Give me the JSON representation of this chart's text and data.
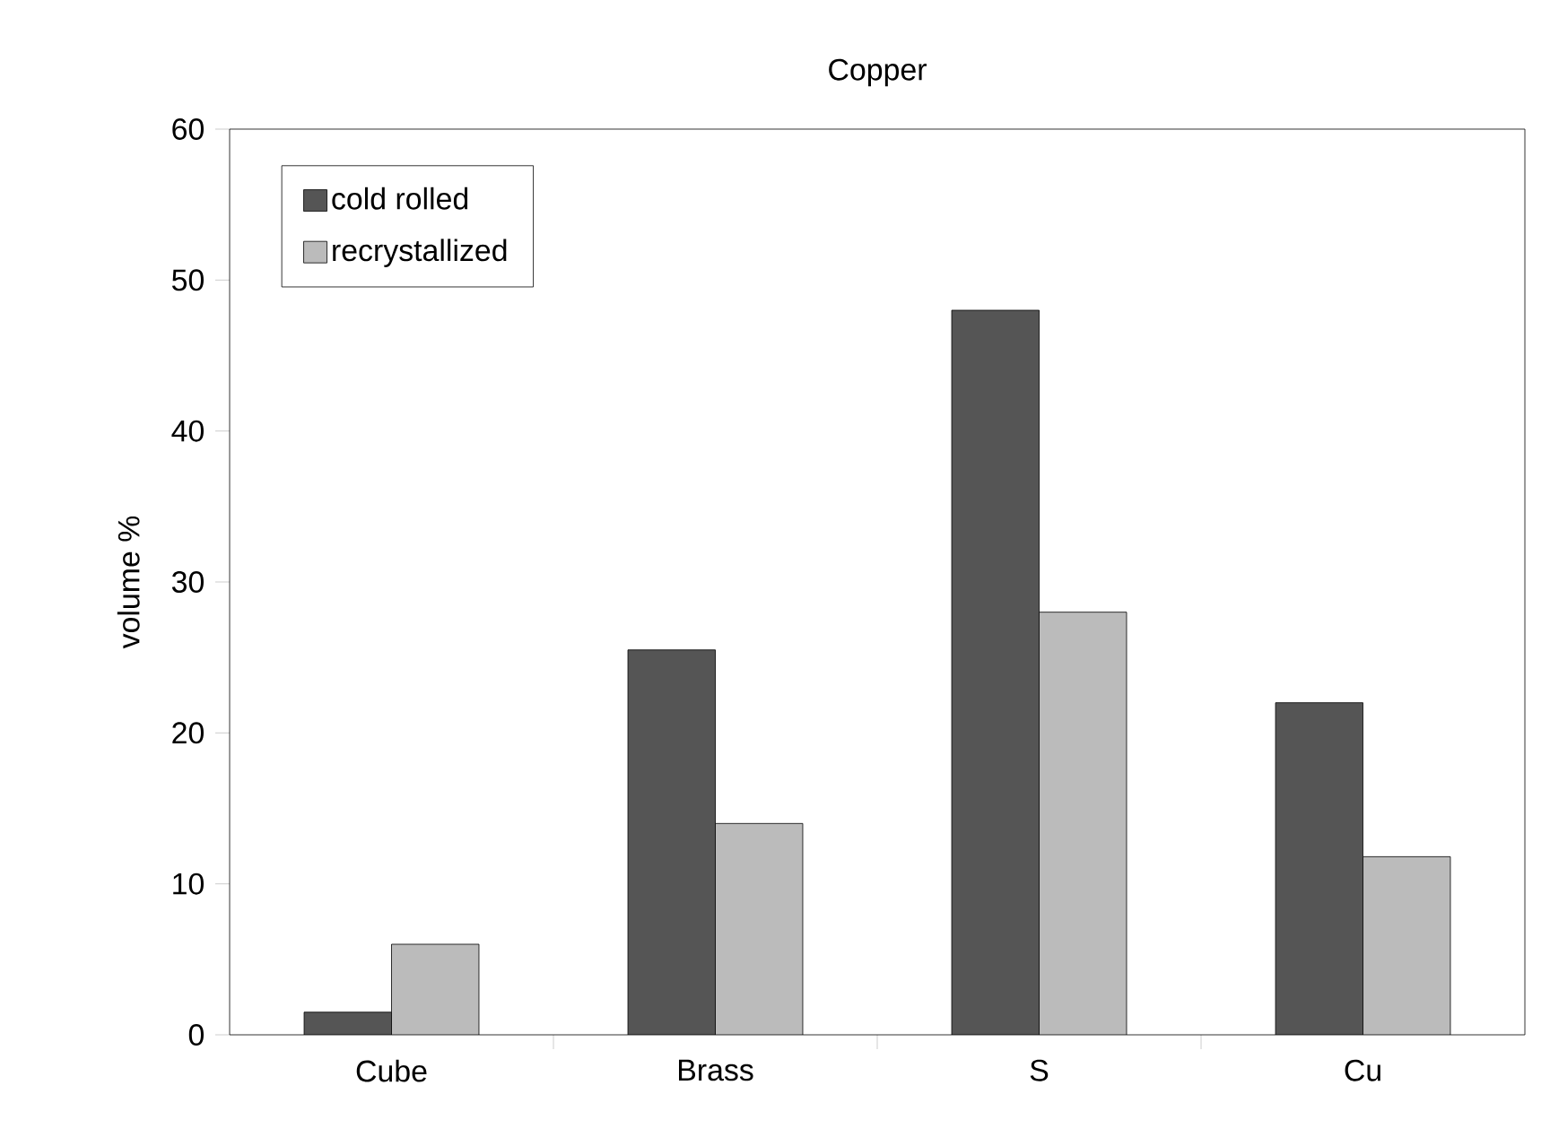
{
  "chart_data": {
    "type": "bar",
    "title": "Copper",
    "ylabel": "volume %",
    "categories": [
      "Cube",
      "Brass",
      "S",
      "Cu"
    ],
    "series": [
      {
        "name": "cold rolled",
        "color": "#555555",
        "values": [
          1.5,
          25.5,
          48,
          22
        ]
      },
      {
        "name": "recrystallized",
        "color": "#bbbbbb",
        "values": [
          6,
          14,
          28,
          11.8
        ]
      }
    ],
    "ylim": [
      0,
      60
    ],
    "yticks": [
      0,
      10,
      20,
      30,
      40,
      50,
      60
    ],
    "legend": "top left",
    "grid": false
  }
}
